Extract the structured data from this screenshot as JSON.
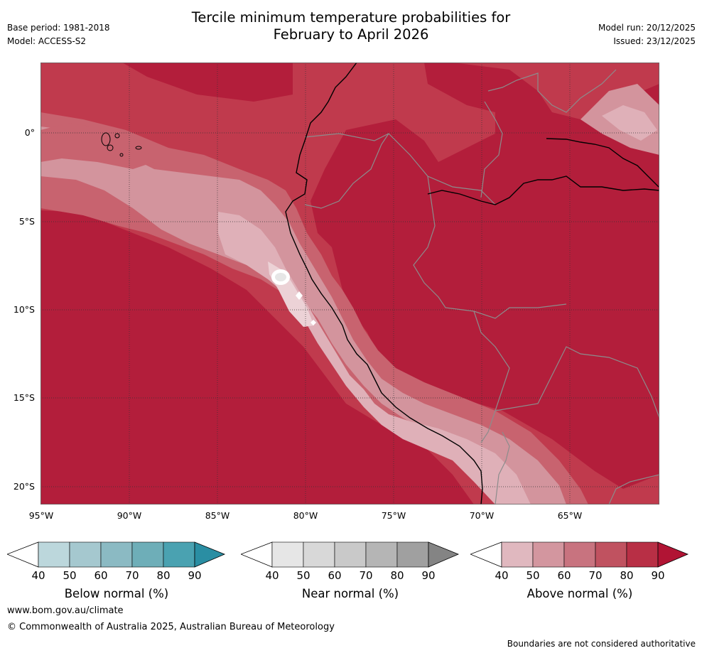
{
  "header": {
    "title_line1": "Tercile minimum temperature probabilities for",
    "title_line2": "February to April 2026",
    "base_period": "Base period: 1981-2018",
    "model": "Model: ACCESS-S2",
    "model_run": "Model run: 20/12/2025",
    "issued": "Issued: 23/12/2025"
  },
  "map": {
    "x_ticks": [
      "95°W",
      "90°W",
      "85°W",
      "80°W",
      "75°W",
      "70°W",
      "65°W"
    ],
    "y_ticks": [
      "0°",
      "5°S",
      "10°S",
      "15°S",
      "20°S"
    ],
    "dominant_color": "#b31e3b"
  },
  "legends": [
    {
      "label": "Below normal (%)",
      "ticks": [
        "40",
        "50",
        "60",
        "70",
        "80",
        "90"
      ],
      "colors": [
        "#bcd7dc",
        "#a5c8cf",
        "#8bbac3",
        "#6eaeb8",
        "#4aa2b1",
        "#2a8ea3"
      ]
    },
    {
      "label": "Near normal (%)",
      "ticks": [
        "40",
        "50",
        "60",
        "70",
        "80",
        "90"
      ],
      "colors": [
        "#e6e6e6",
        "#d8d8d8",
        "#c9c9c9",
        "#b5b5b5",
        "#a0a0a0",
        "#848484"
      ]
    },
    {
      "label": "Above normal (%)",
      "ticks": [
        "40",
        "50",
        "60",
        "70",
        "80",
        "90"
      ],
      "colors": [
        "#e0b8bf",
        "#d3969f",
        "#c8737f",
        "#c05260",
        "#b82f45",
        "#b11434"
      ]
    }
  ],
  "footer": {
    "website": "www.bom.gov.au/climate",
    "copyright": "© Commonwealth of Australia 2025, Australian Bureau of Meteorology",
    "disclaimer": "Boundaries are not considered authoritative"
  }
}
